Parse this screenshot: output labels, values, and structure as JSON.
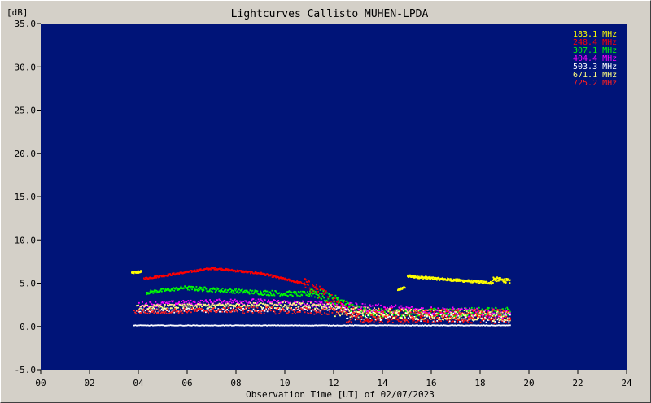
{
  "chart_data": {
    "type": "scatter",
    "title": "Lightcurves Callisto MUHEN-LPDA",
    "ylabel": "[dB]",
    "xlabel": "Observation Time [UT] of 02/07/2023",
    "xlim": [
      0,
      24
    ],
    "ylim": [
      -5,
      35
    ],
    "x_ticks": [
      "00",
      "02",
      "04",
      "06",
      "08",
      "10",
      "12",
      "14",
      "16",
      "18",
      "20",
      "22",
      "24"
    ],
    "y_ticks": [
      "-5.0",
      "0.0",
      "5.0",
      "10.0",
      "15.0",
      "20.0",
      "25.0",
      "30.0",
      "35.0"
    ],
    "grid": false,
    "legend_position": "top-right",
    "background_color": "#001478",
    "series": [
      {
        "name": "183.1 MHz",
        "color": "#ffff00",
        "points": 350,
        "segments": [
          {
            "x": [
              3.7,
              4.1
            ],
            "y": [
              6.3,
              6.4
            ],
            "noise": 0.15
          },
          {
            "x": [
              15.0,
              16.2
            ],
            "y": [
              5.9,
              5.6
            ],
            "noise": 0.15
          },
          {
            "x": [
              16.2,
              18.5
            ],
            "y": [
              5.6,
              5.1
            ],
            "noise": 0.15
          },
          {
            "x": [
              18.5,
              19.2
            ],
            "y": [
              5.6,
              5.3
            ],
            "noise": 0.25
          },
          {
            "x": [
              14.6,
              14.9
            ],
            "y": [
              4.3,
              4.6
            ],
            "noise": 0.1
          }
        ]
      },
      {
        "name": "248.4 MHz",
        "color": "#ff0000",
        "points": 700,
        "segments": [
          {
            "x": [
              4.2,
              7.0
            ],
            "y": [
              5.6,
              6.8
            ],
            "noise": 0.12
          },
          {
            "x": [
              7.0,
              9.0
            ],
            "y": [
              6.8,
              6.2
            ],
            "noise": 0.12
          },
          {
            "x": [
              9.0,
              10.8
            ],
            "y": [
              6.2,
              5.0
            ],
            "noise": 0.12
          },
          {
            "x": [
              10.8,
              13.0
            ],
            "y": [
              5.0,
              1.5
            ],
            "noise": 0.7
          },
          {
            "x": [
              13.0,
              19.2
            ],
            "y": [
              1.5,
              1.2
            ],
            "noise": 0.8
          }
        ]
      },
      {
        "name": "307.1 MHz",
        "color": "#00ff00",
        "points": 600,
        "segments": [
          {
            "x": [
              4.3,
              6.0
            ],
            "y": [
              4.0,
              4.6
            ],
            "noise": 0.2
          },
          {
            "x": [
              6.0,
              9.0
            ],
            "y": [
              4.5,
              4.0
            ],
            "noise": 0.25
          },
          {
            "x": [
              9.0,
              11.0
            ],
            "y": [
              4.0,
              3.8
            ],
            "noise": 0.3
          },
          {
            "x": [
              11.0,
              13.2
            ],
            "y": [
              4.2,
              1.8
            ],
            "noise": 0.6
          },
          {
            "x": [
              13.2,
              19.2
            ],
            "y": [
              1.6,
              1.8
            ],
            "noise": 0.5
          }
        ]
      },
      {
        "name": "404.4 MHz",
        "color": "#ff00ff",
        "points": 450,
        "segments": [
          {
            "x": [
              4.0,
              8.0
            ],
            "y": [
              2.6,
              3.0
            ],
            "noise": 0.3
          },
          {
            "x": [
              8.0,
              12.0
            ],
            "y": [
              3.0,
              2.6
            ],
            "noise": 0.35
          },
          {
            "x": [
              12.0,
              19.2
            ],
            "y": [
              2.4,
              1.5
            ],
            "noise": 0.5
          }
        ]
      },
      {
        "name": "503.3 MHz",
        "color": "#ffffff",
        "points": 600,
        "segments": [
          {
            "x": [
              3.8,
              19.2
            ],
            "y": [
              0.2,
              0.2
            ],
            "noise": 0.03
          },
          {
            "x": [
              3.9,
              12.5
            ],
            "y": [
              1.9,
              2.1
            ],
            "noise": 0.25
          },
          {
            "x": [
              12.5,
              19.2
            ],
            "y": [
              1.3,
              1.0
            ],
            "noise": 0.5
          }
        ]
      },
      {
        "name": "671.1 MHz",
        "color": "#ffff80",
        "points": 450,
        "segments": [
          {
            "x": [
              3.9,
              9.0
            ],
            "y": [
              2.3,
              2.6
            ],
            "noise": 0.25
          },
          {
            "x": [
              9.0,
              12.0
            ],
            "y": [
              2.6,
              2.4
            ],
            "noise": 0.35
          },
          {
            "x": [
              12.0,
              19.2
            ],
            "y": [
              1.8,
              1.2
            ],
            "noise": 0.6
          }
        ]
      },
      {
        "name": "725.2 MHz",
        "color": "#ff2020",
        "points": 400,
        "segments": [
          {
            "x": [
              3.8,
              8.0
            ],
            "y": [
              1.8,
              2.0
            ],
            "noise": 0.3
          },
          {
            "x": [
              8.0,
              12.5
            ],
            "y": [
              2.0,
              1.8
            ],
            "noise": 0.4
          },
          {
            "x": [
              12.5,
              19.2
            ],
            "y": [
              1.0,
              1.5
            ],
            "noise": 0.7
          }
        ]
      }
    ]
  }
}
